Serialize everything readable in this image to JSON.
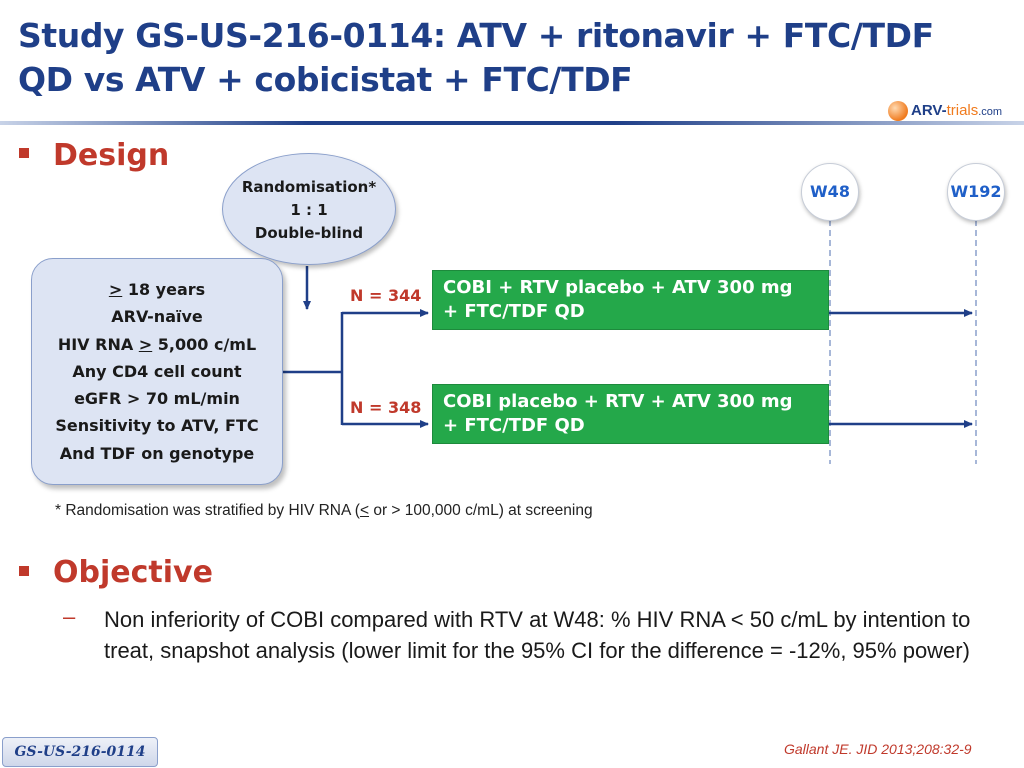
{
  "header": {
    "title_line1": "Study GS-US-216-0114: ATV + ritonavir + FTC/TDF",
    "title_line2": "QD vs ATV + cobicistat + FTC/TDF",
    "logo": {
      "part1": "ARV-",
      "part2": "trials",
      "part3": ".com",
      "icon": "arv-trials-logo-icon"
    }
  },
  "design": {
    "heading": "Design",
    "randomisation": {
      "line1": "Randomisation*",
      "line2": "1 : 1",
      "line3": "Double-blind"
    },
    "criteria": {
      "age_symbol": ">",
      "age_text": " 18 years",
      "line2": "ARV-naïve",
      "rna_prefix": "HIV RNA ",
      "rna_symbol": ">",
      "rna_suffix": " 5,000 c/mL",
      "line4": "Any CD4 cell count",
      "line5": "eGFR > 70 mL/min",
      "line6": "Sensitivity to ATV, FTC",
      "line7": "And TDF on genotype"
    },
    "arms": [
      {
        "n_label": "N = 344",
        "line1": "COBI + RTV placebo + ATV 300 mg",
        "line2": "+ FTC/TDF QD"
      },
      {
        "n_label": "N = 348",
        "line1": "COBI placebo + RTV + ATV 300 mg",
        "line2": "+ FTC/TDF QD"
      }
    ],
    "timepoints": [
      "W48",
      "W192"
    ],
    "footnote": {
      "prefix": "* Randomisation was stratified by HIV RNA (",
      "symbol": "<",
      "suffix": " or > 100,000 c/mL) at screening"
    }
  },
  "objective": {
    "heading": "Objective",
    "dash": "–",
    "text": "Non inferiority of COBI compared with RTV at W48: % HIV RNA < 50 c/mL by intention to treat, snapshot analysis (lower limit for the 95% CI for the difference = -12%, 95% power)"
  },
  "footer": {
    "study_tag": "GS-US-216-0114",
    "citation": "Gallant JE. JID 2013;208:32-9"
  },
  "colors": {
    "title_blue": "#1f3f88",
    "accent_red": "#c0392b",
    "arm_green": "#24a84a",
    "box_fill": "#dde4f3",
    "timepoint_blue": "#1f5fc8"
  }
}
